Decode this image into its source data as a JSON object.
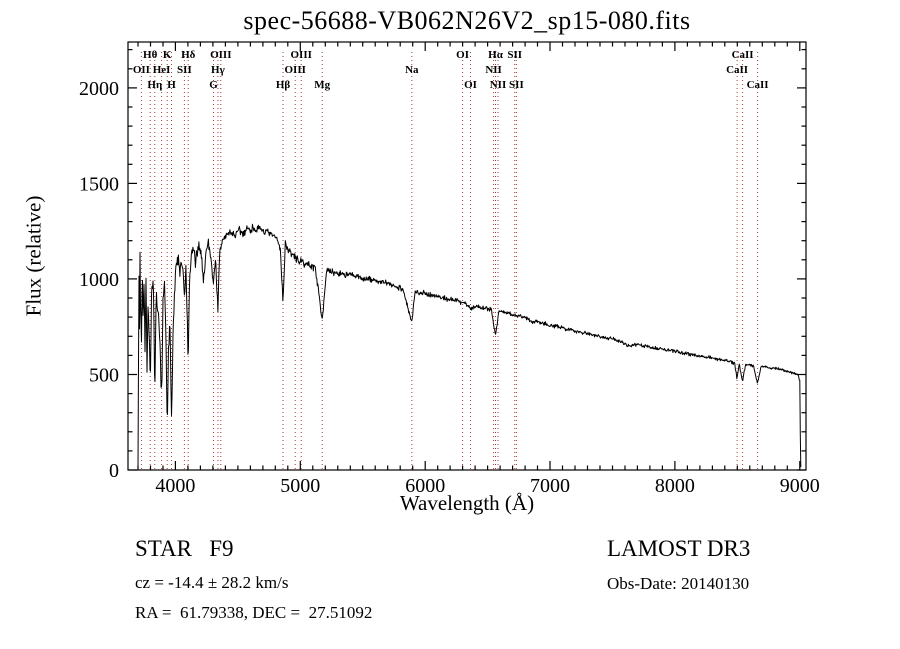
{
  "title": "spec-56688-VB062N26V2_sp15-080.fits",
  "footer": {
    "class_label": "STAR   F9",
    "survey": "LAMOST DR3",
    "cz": "cz = -14.4 ± 28.2 km/s",
    "obs_date": "Obs-Date: 20140130",
    "coords": "RA =  61.79338, DEC =  27.51092"
  },
  "colors": {
    "spectrum": "#000000",
    "axis": "#000000",
    "line_marker": "#a83a32",
    "background": "#ffffff"
  },
  "chart_data": {
    "type": "line",
    "title": "spec-56688-VB062N26V2_sp15-080.fits",
    "xlabel": "Wavelength (Å)",
    "ylabel": "Flux (relative)",
    "xlim": [
      3620,
      9050
    ],
    "ylim": [
      0,
      2240
    ],
    "x_major_ticks": [
      4000,
      5000,
      6000,
      7000,
      8000,
      9000
    ],
    "x_minor_step": 100,
    "y_major_ticks": [
      0,
      500,
      1000,
      1500,
      2000
    ],
    "y_minor_step": 100,
    "grid": false,
    "legend": null,
    "spectral_lines": [
      {
        "label": "OII",
        "wavelength": 3727,
        "row": 2
      },
      {
        "label": "Hθ",
        "wavelength": 3798,
        "row": 1
      },
      {
        "label": "Hη",
        "wavelength": 3835,
        "row": 3
      },
      {
        "label": "HeI",
        "wavelength": 3889,
        "row": 2
      },
      {
        "label": "K",
        "wavelength": 3934,
        "row": 1
      },
      {
        "label": "H",
        "wavelength": 3968,
        "row": 3
      },
      {
        "label": "SII",
        "wavelength": 4072,
        "row": 2
      },
      {
        "label": "Hδ",
        "wavelength": 4102,
        "row": 1
      },
      {
        "label": "G",
        "wavelength": 4305,
        "row": 3
      },
      {
        "label": "Hγ",
        "wavelength": 4340,
        "row": 2
      },
      {
        "label": "OIII",
        "wavelength": 4363,
        "row": 1
      },
      {
        "label": "Hβ",
        "wavelength": 4861,
        "row": 3
      },
      {
        "label": "OIII",
        "wavelength": 4959,
        "row": 2
      },
      {
        "label": "OIII",
        "wavelength": 5007,
        "row": 1
      },
      {
        "label": "Mg",
        "wavelength": 5175,
        "row": 3
      },
      {
        "label": "Na",
        "wavelength": 5893,
        "row": 2
      },
      {
        "label": "OI",
        "wavelength": 6300,
        "row": 1
      },
      {
        "label": "OI",
        "wavelength": 6363,
        "row": 3
      },
      {
        "label": "NII",
        "wavelength": 6548,
        "row": 2
      },
      {
        "label": "Hα",
        "wavelength": 6563,
        "row": 1
      },
      {
        "label": "NII",
        "wavelength": 6583,
        "row": 3
      },
      {
        "label": "SII",
        "wavelength": 6717,
        "row": 1
      },
      {
        "label": "SII",
        "wavelength": 6731,
        "row": 3
      },
      {
        "label": "CaII",
        "wavelength": 8498,
        "row": 2
      },
      {
        "label": "CaII",
        "wavelength": 8542,
        "row": 1
      },
      {
        "label": "CaII",
        "wavelength": 8662,
        "row": 3
      }
    ],
    "spectrum_envelope": [
      [
        3700,
        60
      ],
      [
        3704,
        520
      ],
      [
        3708,
        1020
      ],
      [
        3712,
        760
      ],
      [
        3716,
        1120
      ],
      [
        3720,
        900
      ],
      [
        3727,
        640
      ],
      [
        3734,
        1060
      ],
      [
        3740,
        800
      ],
      [
        3748,
        1010
      ],
      [
        3756,
        620
      ],
      [
        3764,
        960
      ],
      [
        3772,
        520
      ],
      [
        3780,
        890
      ],
      [
        3790,
        700
      ],
      [
        3798,
        430
      ],
      [
        3806,
        860
      ],
      [
        3814,
        1010
      ],
      [
        3824,
        910
      ],
      [
        3835,
        380
      ],
      [
        3846,
        910
      ],
      [
        3858,
        830
      ],
      [
        3870,
        720
      ],
      [
        3880,
        600
      ],
      [
        3889,
        360
      ],
      [
        3900,
        860
      ],
      [
        3912,
        960
      ],
      [
        3924,
        700
      ],
      [
        3934,
        160
      ],
      [
        3944,
        620
      ],
      [
        3956,
        760
      ],
      [
        3968,
        290
      ],
      [
        3980,
        710
      ],
      [
        3992,
        910
      ],
      [
        4005,
        1060
      ],
      [
        4020,
        1110
      ],
      [
        4035,
        1030
      ],
      [
        4050,
        1090
      ],
      [
        4065,
        990
      ],
      [
        4072,
        890
      ],
      [
        4085,
        1060
      ],
      [
        4102,
        570
      ],
      [
        4115,
        1010
      ],
      [
        4130,
        1130
      ],
      [
        4145,
        1160
      ],
      [
        4160,
        1090
      ],
      [
        4180,
        1140
      ],
      [
        4200,
        1170
      ],
      [
        4226,
        990
      ],
      [
        4245,
        1150
      ],
      [
        4265,
        1190
      ],
      [
        4285,
        1110
      ],
      [
        4305,
        970
      ],
      [
        4320,
        1110
      ],
      [
        4340,
        850
      ],
      [
        4355,
        1130
      ],
      [
        4370,
        1190
      ],
      [
        4390,
        1215
      ],
      [
        4420,
        1235
      ],
      [
        4450,
        1245
      ],
      [
        4480,
        1225
      ],
      [
        4510,
        1255
      ],
      [
        4540,
        1235
      ],
      [
        4570,
        1265
      ],
      [
        4600,
        1255
      ],
      [
        4630,
        1270
      ],
      [
        4660,
        1255
      ],
      [
        4690,
        1260
      ],
      [
        4720,
        1245
      ],
      [
        4750,
        1235
      ],
      [
        4780,
        1225
      ],
      [
        4810,
        1215
      ],
      [
        4840,
        1160
      ],
      [
        4861,
        880
      ],
      [
        4880,
        1185
      ],
      [
        4910,
        1145
      ],
      [
        4940,
        1125
      ],
      [
        4970,
        1105
      ],
      [
        5000,
        1090
      ],
      [
        5040,
        1080
      ],
      [
        5080,
        1070
      ],
      [
        5120,
        1060
      ],
      [
        5175,
        790
      ],
      [
        5210,
        1040
      ],
      [
        5250,
        1035
      ],
      [
        5300,
        1030
      ],
      [
        5350,
        1025
      ],
      [
        5400,
        1020
      ],
      [
        5460,
        1010
      ],
      [
        5520,
        1000
      ],
      [
        5580,
        995
      ],
      [
        5640,
        985
      ],
      [
        5700,
        975
      ],
      [
        5760,
        962
      ],
      [
        5820,
        950
      ],
      [
        5893,
        770
      ],
      [
        5920,
        935
      ],
      [
        5960,
        930
      ],
      [
        6000,
        925
      ],
      [
        6060,
        915
      ],
      [
        6120,
        905
      ],
      [
        6180,
        895
      ],
      [
        6240,
        888
      ],
      [
        6300,
        878
      ],
      [
        6330,
        870
      ],
      [
        6363,
        845
      ],
      [
        6420,
        858
      ],
      [
        6480,
        848
      ],
      [
        6530,
        840
      ],
      [
        6563,
        705
      ],
      [
        6590,
        832
      ],
      [
        6650,
        822
      ],
      [
        6710,
        812
      ],
      [
        6770,
        802
      ],
      [
        6830,
        792
      ],
      [
        6860,
        770
      ],
      [
        6890,
        782
      ],
      [
        6950,
        768
      ],
      [
        7010,
        757
      ],
      [
        7080,
        746
      ],
      [
        7150,
        736
      ],
      [
        7220,
        726
      ],
      [
        7290,
        716
      ],
      [
        7360,
        706
      ],
      [
        7430,
        696
      ],
      [
        7500,
        686
      ],
      [
        7570,
        672
      ],
      [
        7620,
        648
      ],
      [
        7680,
        657
      ],
      [
        7750,
        649
      ],
      [
        7820,
        641
      ],
      [
        7890,
        633
      ],
      [
        7960,
        625
      ],
      [
        8030,
        617
      ],
      [
        8100,
        609
      ],
      [
        8170,
        601
      ],
      [
        8240,
        593
      ],
      [
        8310,
        585
      ],
      [
        8380,
        577
      ],
      [
        8440,
        569
      ],
      [
        8480,
        556
      ],
      [
        8498,
        478
      ],
      [
        8515,
        556
      ],
      [
        8542,
        462
      ],
      [
        8565,
        552
      ],
      [
        8600,
        549
      ],
      [
        8630,
        546
      ],
      [
        8662,
        452
      ],
      [
        8690,
        543
      ],
      [
        8740,
        538
      ],
      [
        8800,
        532
      ],
      [
        8860,
        524
      ],
      [
        8920,
        514
      ],
      [
        8960,
        504
      ],
      [
        8990,
        494
      ],
      [
        9000,
        468
      ],
      [
        9004,
        180
      ],
      [
        9008,
        15
      ]
    ],
    "noise_profile": [
      [
        3700,
        70
      ],
      [
        4150,
        50
      ],
      [
        4450,
        30
      ],
      [
        4900,
        24
      ],
      [
        5500,
        20
      ],
      [
        6200,
        16
      ],
      [
        7000,
        13
      ],
      [
        8000,
        11
      ],
      [
        9008,
        9
      ]
    ],
    "noise_seed": 7
  }
}
